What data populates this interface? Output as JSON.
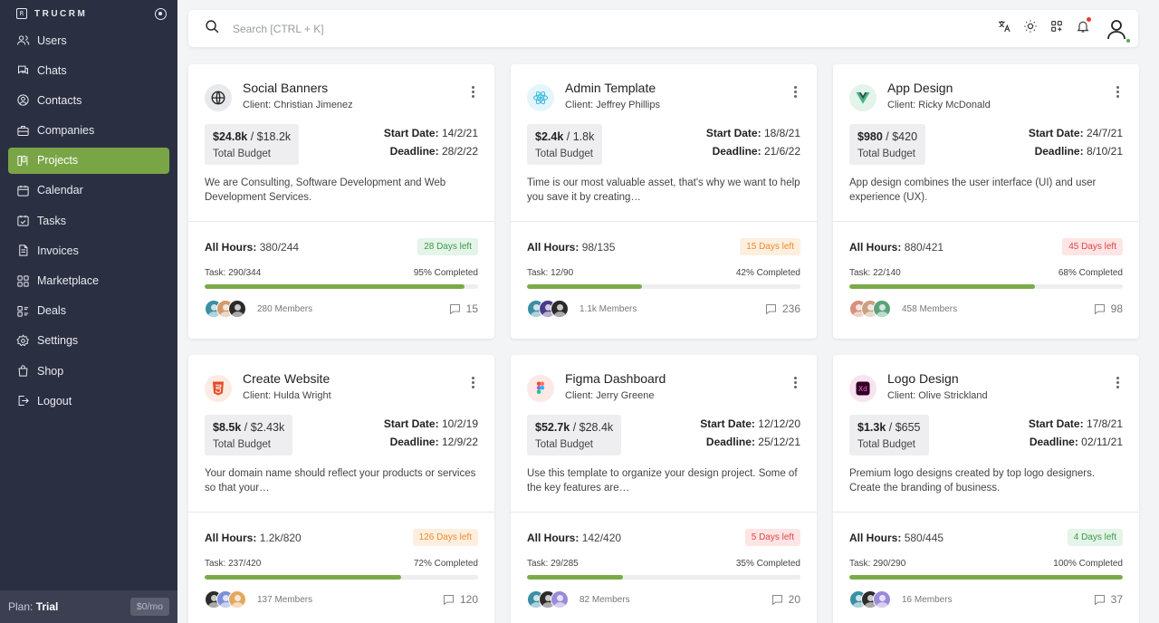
{
  "brand": {
    "name": "TRUCRM",
    "logo_text": "R"
  },
  "sidebar": {
    "items": [
      {
        "label": "Users",
        "icon": "users-icon",
        "active": false
      },
      {
        "label": "Chats",
        "icon": "chat-icon",
        "active": false
      },
      {
        "label": "Contacts",
        "icon": "contacts-icon",
        "active": false
      },
      {
        "label": "Companies",
        "icon": "companies-icon",
        "active": false
      },
      {
        "label": "Projects",
        "icon": "projects-icon",
        "active": true
      },
      {
        "label": "Calendar",
        "icon": "calendar-icon",
        "active": false
      },
      {
        "label": "Tasks",
        "icon": "tasks-icon",
        "active": false
      },
      {
        "label": "Invoices",
        "icon": "invoice-icon",
        "active": false
      },
      {
        "label": "Marketplace",
        "icon": "marketplace-icon",
        "active": false
      },
      {
        "label": "Deals",
        "icon": "deals-icon",
        "active": false
      },
      {
        "label": "Settings",
        "icon": "settings-icon",
        "active": false
      },
      {
        "label": "Shop",
        "icon": "shop-icon",
        "active": false
      },
      {
        "label": "Logout",
        "icon": "logout-icon",
        "active": false
      }
    ],
    "plan_label": "Plan:",
    "plan_name": "Trial",
    "plan_price": "$0/mo"
  },
  "search": {
    "placeholder": "Search [CTRL + K]",
    "value": ""
  },
  "colors": {
    "accent": "#79a546",
    "sidebar_bg": "#2b2f42",
    "progress": "#7aab48"
  },
  "projects": [
    {
      "title": "Social Banners",
      "client": "Christian Jimenez",
      "icon": "globe-icon",
      "budget_spent": "$24.8k",
      "budget_total": "$18.2k",
      "budget_label": "Total Budget",
      "start_date": "14/2/21",
      "deadline": "28/2/22",
      "description": "We are Consulting, Software Development and Web Development Services.",
      "hours": "380/244",
      "days_left": "28 Days left",
      "days_status": "green",
      "task": "290/344",
      "completed": "95% Completed",
      "progress": 95,
      "members": "280 Members",
      "comments": "15",
      "member_colors": [
        "#3a8fa3",
        "#d39a6c",
        "#2d2a2a"
      ]
    },
    {
      "title": "Admin Template",
      "client": "Jeffrey Phillips",
      "icon": "react-icon",
      "budget_spent": "$2.4k",
      "budget_total": "1.8k",
      "budget_label": "Total Budget",
      "start_date": "18/8/21",
      "deadline": "21/6/22",
      "description": "Time is our most valuable asset, that's why we want to help you save it by creating…",
      "hours": "98/135",
      "days_left": "15 Days left",
      "days_status": "orange",
      "task": "12/90",
      "completed": "42% Completed",
      "progress": 42,
      "members": "1.1k Members",
      "comments": "236",
      "member_colors": [
        "#3a8fa3",
        "#4a3a8a",
        "#2d2a2a"
      ]
    },
    {
      "title": "App Design",
      "client": "Ricky McDonald",
      "icon": "vue-icon",
      "budget_spent": "$980",
      "budget_total": "$420",
      "budget_label": "Total Budget",
      "start_date": "24/7/21",
      "deadline": "8/10/21",
      "description": "App design combines the user interface (UI) and user experience (UX).",
      "hours": "880/421",
      "days_left": "45 Days left",
      "days_status": "red",
      "task": "22/140",
      "completed": "68% Completed",
      "progress": 68,
      "members": "458 Members",
      "comments": "98",
      "member_colors": [
        "#d8907e",
        "#c9a080",
        "#5aa37a"
      ]
    },
    {
      "title": "Create Website",
      "client": "Hulda Wright",
      "icon": "html5-icon",
      "budget_spent": "$8.5k",
      "budget_total": "$2.43k",
      "budget_label": "Total Budget",
      "start_date": "10/2/19",
      "deadline": "12/9/22",
      "description": "Your domain name should reflect your products or services so that your…",
      "hours": "1.2k/820",
      "days_left": "126 Days left",
      "days_status": "orange",
      "task": "237/420",
      "completed": "72% Completed",
      "progress": 72,
      "members": "137 Members",
      "comments": "120",
      "member_colors": [
        "#2d2a2a",
        "#7d8fd6",
        "#e3a85f"
      ]
    },
    {
      "title": "Figma Dashboard",
      "client": "Jerry Greene",
      "icon": "figma-icon",
      "budget_spent": "$52.7k",
      "budget_total": "$28.4k",
      "budget_label": "Total Budget",
      "start_date": "12/12/20",
      "deadline": "25/12/21",
      "description": "Use this template to organize your design project. Some of the key features are…",
      "hours": "142/420",
      "days_left": "5 Days left",
      "days_status": "red",
      "task": "29/285",
      "completed": "35% Completed",
      "progress": 35,
      "members": "82 Members",
      "comments": "20",
      "member_colors": [
        "#3a8fa3",
        "#2d2a2a",
        "#9b8ad8"
      ]
    },
    {
      "title": "Logo Design",
      "client": "Olive Strickland",
      "icon": "xd-icon",
      "budget_spent": "$1.3k",
      "budget_total": "$655",
      "budget_label": "Total Budget",
      "start_date": "17/8/21",
      "deadline": "02/11/21",
      "description": "Premium logo designs created by top logo designers. Create the branding of business.",
      "hours": "580/445",
      "days_left": "4 Days left",
      "days_status": "green",
      "task": "290/290",
      "completed": "100% Completed",
      "progress": 100,
      "members": "16 Members",
      "comments": "37",
      "member_colors": [
        "#3a8fa3",
        "#2d2a2a",
        "#9b8ad8"
      ]
    }
  ],
  "labels": {
    "client_prefix": "Client: ",
    "start_date": "Start Date:",
    "deadline": "Deadline:",
    "all_hours": "All Hours:",
    "task": "Task:"
  }
}
